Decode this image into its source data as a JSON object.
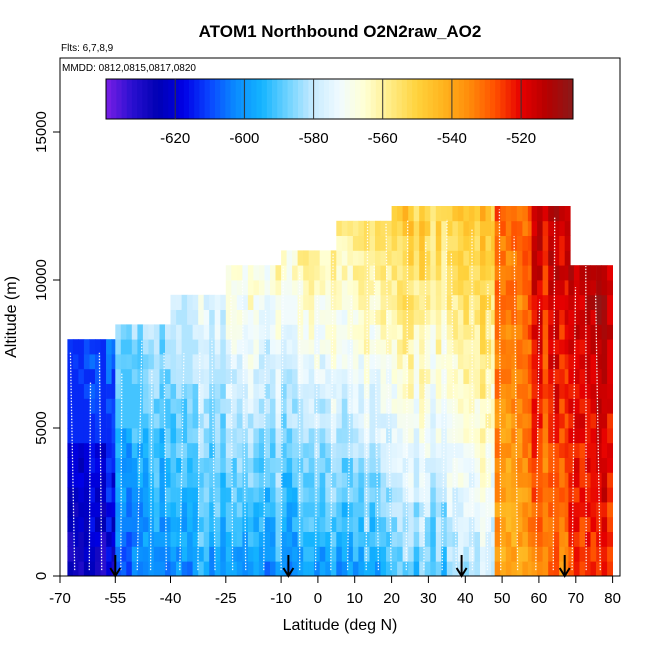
{
  "chart_data": {
    "type": "heatmap",
    "title": "ATOM1 Northbound O2N2raw_AO2",
    "subtitle_flights": "Flts: 6,7,8,9",
    "subtitle_dates": "MMDD: 0812,0815,0817,0820",
    "xlabel": "Latitude (deg N)",
    "ylabel": "Altitude (m)",
    "xlim": [
      -70,
      82
    ],
    "ylim": [
      0,
      17500
    ],
    "x_ticks": [
      -70,
      -55,
      -40,
      -25,
      -10,
      0,
      10,
      20,
      30,
      40,
      50,
      60,
      70,
      80
    ],
    "x_tick_labels": [
      "-70",
      "-55",
      "-40",
      "-25",
      "-10",
      "0",
      "10",
      "20",
      "30",
      "40",
      "50",
      "60",
      "70",
      "80"
    ],
    "y_ticks": [
      0,
      5000,
      10000,
      15000
    ],
    "y_tick_labels": [
      "0",
      "5000",
      "10000",
      "15000"
    ],
    "colorbar": {
      "range": [
        -640,
        -505
      ],
      "ticks": [
        -620,
        -600,
        -580,
        -560,
        -540,
        -520
      ],
      "tick_labels": [
        "-620",
        "-600",
        "-580",
        "-560",
        "-540",
        "-520"
      ],
      "colors": [
        "#7a1fe6",
        "#2a0fd0",
        "#0000b4",
        "#0000e6",
        "#0a46ff",
        "#0a8cff",
        "#14b4ff",
        "#6ed2ff",
        "#c8ebff",
        "#f0fbff",
        "#ffffd2",
        "#ffeb82",
        "#ffd23c",
        "#ffb41e",
        "#ff8c0a",
        "#ff5000",
        "#e60000",
        "#b40000",
        "#8b1a1a"
      ]
    },
    "profile_arrows_lat": [
      -55,
      -8,
      39,
      67
    ],
    "field_segments": [
      {
        "lat": [
          -68,
          -55
        ],
        "alt_top": 8000,
        "low": -625,
        "high": -608,
        "mid": 4000
      },
      {
        "lat": [
          -55,
          -40
        ],
        "alt_top": 8500,
        "low": -605,
        "high": -585,
        "mid": 4500
      },
      {
        "lat": [
          -40,
          -25
        ],
        "alt_top": 9500,
        "low": -598,
        "high": -575,
        "mid": 6000
      },
      {
        "lat": [
          -25,
          -10
        ],
        "alt_top": 10500,
        "low": -600,
        "high": -565,
        "mid": 7500
      },
      {
        "lat": [
          -10,
          5
        ],
        "alt_top": 11000,
        "low": -600,
        "high": -560,
        "mid": 8000
      },
      {
        "lat": [
          5,
          20
        ],
        "alt_top": 12000,
        "low": -598,
        "high": -555,
        "mid": 8500
      },
      {
        "lat": [
          20,
          35
        ],
        "alt_top": 12300,
        "low": -590,
        "high": -550,
        "mid": 8500
      },
      {
        "lat": [
          35,
          48
        ],
        "alt_top": 12500,
        "low": -580,
        "high": -545,
        "mid": 9000
      },
      {
        "lat": [
          48,
          58
        ],
        "alt_top": 12500,
        "low": -540,
        "high": -530,
        "mid": 8000
      },
      {
        "lat": [
          58,
          68
        ],
        "alt_top": 12300,
        "low": -535,
        "high": -515,
        "mid": 6000
      },
      {
        "lat": [
          68,
          79
        ],
        "alt_top": 10500,
        "low": -525,
        "high": -512,
        "mid": 5000
      }
    ]
  }
}
